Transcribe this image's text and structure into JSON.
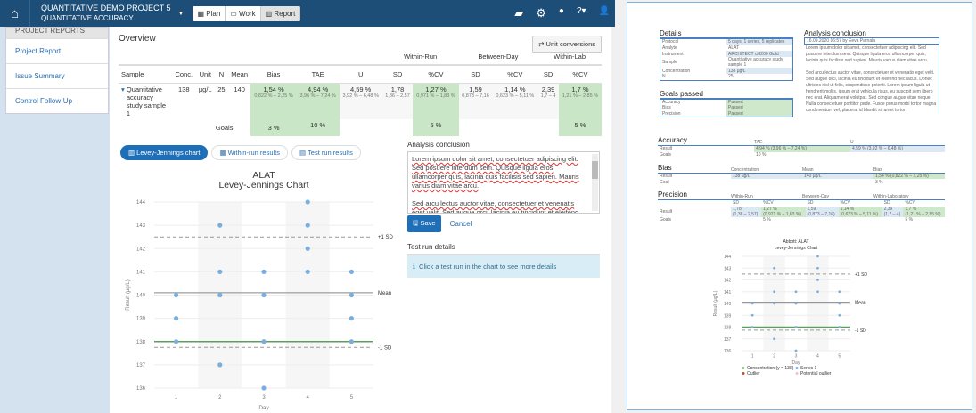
{
  "nav": {
    "project": "QUANTITATIVE DEMO PROJECT 5",
    "subtitle": "QUANTITATIVE ACCURACY",
    "tabs": [
      {
        "label": "Plan",
        "icon": "calendar-icon"
      },
      {
        "label": "Work",
        "icon": "work-icon"
      },
      {
        "label": "Report",
        "icon": "chart-icon",
        "active": true
      }
    ],
    "icons": [
      "folder-open-icon",
      "gear-icon",
      "chat-icon",
      "help-icon",
      "user-icon"
    ]
  },
  "sidebar": {
    "header": "PROJECT REPORTS",
    "items": [
      {
        "label": "Project Report"
      },
      {
        "label": "Issue Summary"
      },
      {
        "label": "Control Follow-Up"
      }
    ]
  },
  "overview": {
    "title": "Overview",
    "unit_button": "Unit conversions",
    "groups": [
      "Within-Run",
      "Between-Day",
      "Within-Lab"
    ],
    "columns": [
      "Sample",
      "Conc.",
      "Unit",
      "N",
      "Mean",
      "Bias",
      "TAE",
      "U",
      "SD",
      "%CV",
      "SD",
      "%CV",
      "SD",
      "%CV"
    ],
    "row": {
      "sample": "Quantitative accuracy study sample 1",
      "conc": "138",
      "unit": "µg/L",
      "n": "25",
      "mean": "140",
      "bias": "1,54 %",
      "bias_ci": "0,822 % – 2,25 %",
      "tae": "4,94 %",
      "tae_ci": "3,96 % – 7,24 %",
      "u": "4,59 %",
      "u_ci": "3,92 % – 6,48 %",
      "wr_sd": "1,78",
      "wr_sd_ci": "1,36 – 2,57",
      "wr_cv": "1,27 %",
      "wr_cv_ci": "0,971 % – 1,83 %",
      "bd_sd": "1,59",
      "bd_sd_ci": "0,873 – 7,16",
      "bd_cv": "1,14 %",
      "bd_cv_ci": "0,623 % – 5,11 %",
      "wl_sd": "2,39",
      "wl_sd_ci": "1,7 – 4",
      "wl_cv": "1,7 %",
      "wl_cv_ci": "1,21 % – 2,85 %"
    },
    "goals": {
      "label": "Goals",
      "bias": "3 %",
      "tae": "10 %",
      "wr_cv": "5 %",
      "wl_cv": "5 %"
    }
  },
  "tabs": [
    {
      "label": "Levey-Jennings chart",
      "active": true
    },
    {
      "label": "Within-run results"
    },
    {
      "label": "Test run results"
    }
  ],
  "chart_data": {
    "type": "scatter",
    "title": "ALAT",
    "subtitle": "Levey-Jennings Chart",
    "xlabel": "Day",
    "ylabel": "Result (µg/L)",
    "categories": [
      "1",
      "2",
      "3",
      "4",
      "5"
    ],
    "ylim": [
      136,
      144
    ],
    "yticks": [
      136,
      137,
      138,
      139,
      140,
      141,
      142,
      143,
      144
    ],
    "points": [
      [
        1,
        140
      ],
      [
        1,
        139
      ],
      [
        1,
        138
      ],
      [
        2,
        143
      ],
      [
        2,
        141
      ],
      [
        2,
        140
      ],
      [
        2,
        137
      ],
      [
        3,
        141
      ],
      [
        3,
        140
      ],
      [
        3,
        138
      ],
      [
        3,
        136
      ],
      [
        4,
        144
      ],
      [
        4,
        143
      ],
      [
        4,
        142
      ],
      [
        4,
        141
      ],
      [
        5,
        141
      ],
      [
        5,
        140
      ],
      [
        5,
        139
      ],
      [
        5,
        138
      ]
    ],
    "lines": [
      {
        "label": "Mean",
        "value": 140.1,
        "style": "solid",
        "color": "#888888"
      },
      {
        "label": "+1 SD",
        "value": 142.5,
        "style": "dashed",
        "color": "#999999"
      },
      {
        "label": "-1 SD",
        "value": 137.75,
        "style": "dashed",
        "color": "#999999"
      },
      {
        "label": "",
        "value": 138,
        "style": "solid",
        "color": "#5aa05a"
      }
    ],
    "point_color": "#7aaee0",
    "grid": true
  },
  "conclusion": {
    "label": "Analysis conclusion",
    "p1": [
      "Lorem ipsum dolor sit amet, consectetuer adipiscing elit. Sed posuere interdum sem. Quisque ligula eros ullamcorper quis, lacinia quis facilisis sed sapien. Mauris varius diam vitae arcu."
    ],
    "p2": "Sed arcu lectus auctor vitae, consectetuer et venenatis eget velit. Sed augue orci, lacinia eu tincidunt et eleifend",
    "save": "Save",
    "cancel": "Cancel"
  },
  "test_run": {
    "label": "Test run details",
    "info": "Click a test run in the chart to see more details"
  },
  "report": {
    "details_title": "Details",
    "details": [
      [
        "Protocol",
        "5 days, 1 series, 5 replicates"
      ],
      [
        "Analyte",
        "ALAT"
      ],
      [
        "Instrument",
        "ARCHITECT ci8200 Gold"
      ],
      [
        "Sample",
        "Quantitative accuracy study sample 1"
      ],
      [
        "Concentration",
        "138 µg/L"
      ],
      [
        "N",
        "25"
      ]
    ],
    "goals_title": "Goals passed",
    "goals": [
      [
        "Accuracy",
        "Passed"
      ],
      [
        "Bias",
        "Passed"
      ],
      [
        "Precision",
        "Passed"
      ]
    ],
    "conclusion_title": "Analysis conclusion",
    "conclusion_meta": "16.09.2020 16:57 by Eeva Parnala",
    "conclusion_text": "Lorem ipsum dolor sit amet, consectetuer adipiscing elit. Sed posuere interdum sem. Quisque ligula eros ullamcorper quis, lacinia quis facilisis sed sapien. Mauris varius diam vitae arcu.",
    "conclusion_text2": "Sed arcu lectus auctor vitae, consectetuer et venenatis eget velit. Sed augue orci, lacinia eu tincidunt et eleifend nec lacus. Donec ultricies nisl ut felis, suspendisse potenti. Lorem ipsum ligula ut hendrerit mollis, ipsum erat vehicula risus, eu suscipit sem libero nec erat. Aliquam erat volutpat. Sed congue augue vitae neque. Nulla consectetuer porttitor pede. Fusce purus morbi tortor magna condimentum vel, placerat id blandit sit amet tortor.",
    "accuracy_title": "Accuracy",
    "accuracy": {
      "h": [
        "TAE",
        "U"
      ],
      "result": [
        "4,94 % (3,96 % – 7,24 %)",
        "4,59 % (3,92 % – 6,48 %)"
      ],
      "goal": "10 %"
    },
    "bias_title": "Bias",
    "bias": {
      "h": [
        "Concentration",
        "Mean",
        "Bias"
      ],
      "result": [
        "138 µg/L",
        "140 µg/L",
        "1,54 % (0,822 % – 2,25 %)"
      ],
      "goal": "3 %"
    },
    "precision_title": "Precision",
    "precision": {
      "groups": [
        "Within-Run",
        "Between-Day",
        "Within-Laboratory"
      ],
      "h": [
        "SD",
        "%CV",
        "SD",
        "%CV",
        "SD",
        "%CV"
      ],
      "result": [
        "1,78",
        "1,27 %",
        "1,59",
        "1,14 %",
        "2,39",
        "1,7 %"
      ],
      "ci": [
        "(1,36 – 2,57)",
        "(0,971 % – 1,83 %)",
        "(0,873 – 7,16)",
        "(0,623 % – 5,11 %)",
        "(1,7 – 4)",
        "(1,21 % – 2,85 %)"
      ],
      "goals": [
        "",
        "5 %",
        "",
        "",
        "",
        "5 %"
      ]
    },
    "row_result": "Result",
    "row_goals": "Goals",
    "row_goal": "Goal",
    "chart_title": "Abbott: ALAT",
    "chart_subtitle": "Levey-Jennings Chart",
    "legend": [
      "Concentration (y = 138)",
      "Series 1",
      "Outlier",
      "Potential outlier"
    ]
  }
}
